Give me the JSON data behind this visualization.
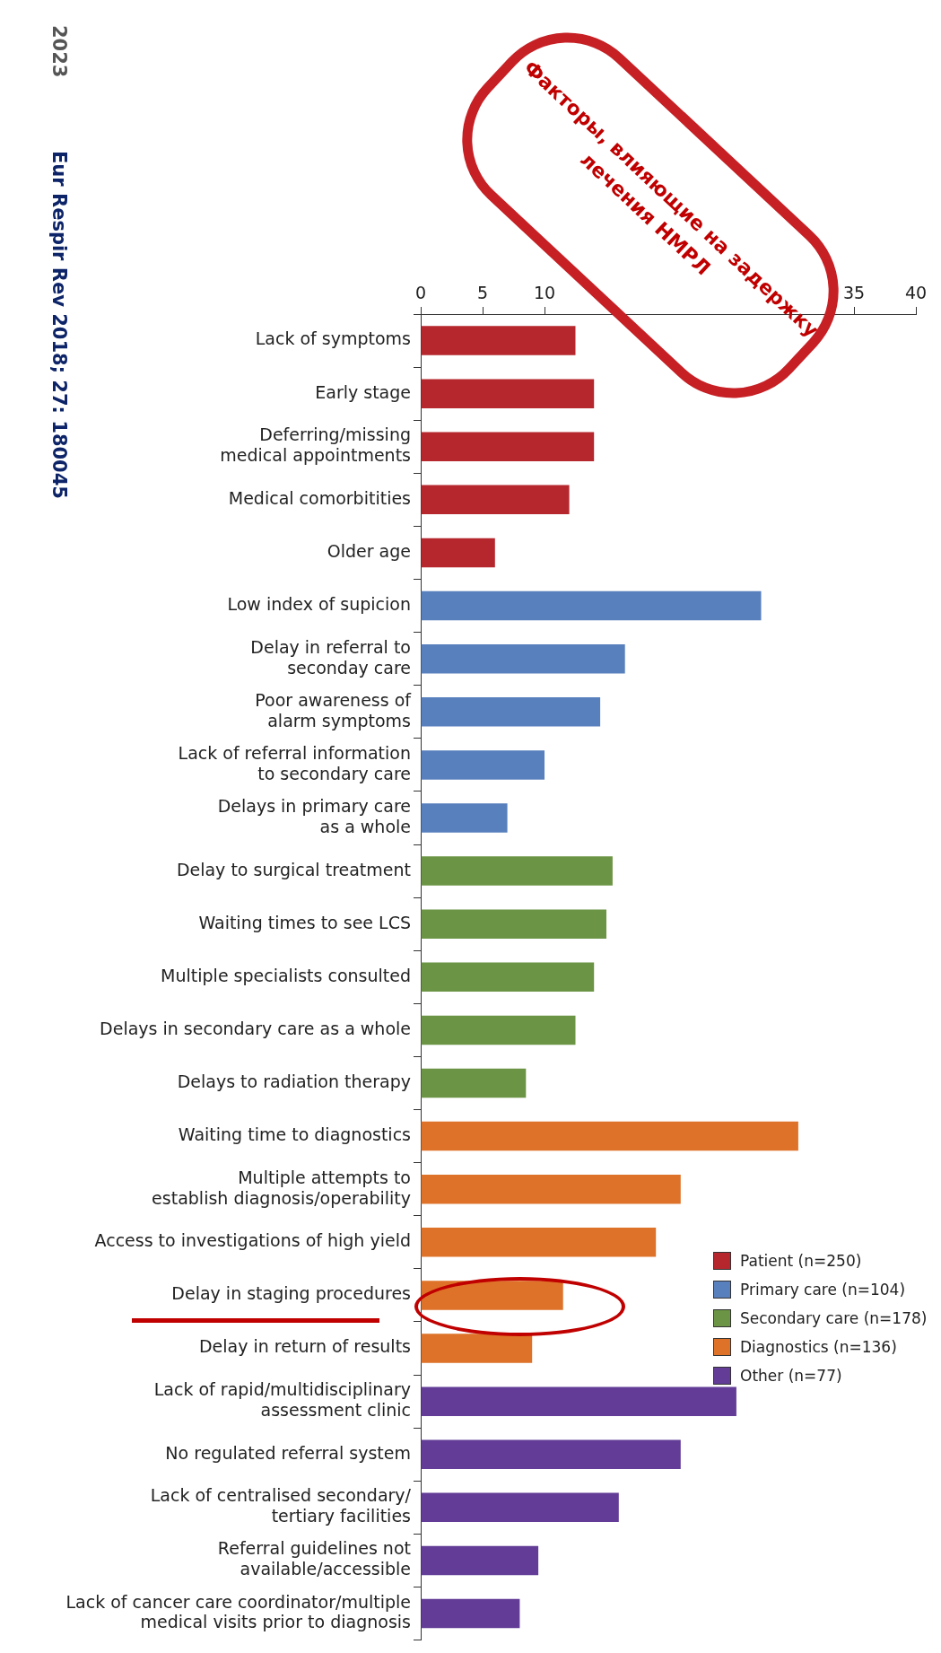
{
  "chart_data": {
    "type": "bar",
    "orientation": "horizontal",
    "categories": [
      "Lack of symptoms",
      "Early stage",
      "Deferring/missing\nmedical appointments",
      "Medical comorbitities",
      "Older age",
      "Low index of supicion",
      "Delay in referral to\nseconday care",
      "Poor awareness of\nalarm symptoms",
      "Lack of referral information\nto secondary care",
      "Delays in primary care\nas a whole",
      "Delay to surgical treatment",
      "Waiting times to see LCS",
      "Multiple specialists consulted",
      "Delays in secondary care as a whole",
      "Delays to radiation therapy",
      "Waiting time to diagnostics",
      "Multiple attempts to\nestablish diagnosis/operability",
      "Access to investigations of high yield",
      "Delay in staging procedures",
      "Delay in return of results",
      "Lack of rapid/multidisciplinary\nassessment clinic",
      "No regulated referral system",
      "Lack of centralised secondary/\ntertiary facilities",
      "Referral guidelines not\navailable/accessible",
      "Lack of cancer care coordinator/multiple\nmedical visits prior to diagnosis"
    ],
    "series": [
      {
        "name": "Patient (n=250)",
        "color": "#b5272d",
        "values": [
          12.5,
          14,
          14,
          12,
          6,
          null,
          null,
          null,
          null,
          null,
          null,
          null,
          null,
          null,
          null,
          null,
          null,
          null,
          null,
          null,
          null,
          null,
          null,
          null,
          null
        ]
      },
      {
        "name": "Primary care (n=104)",
        "color": "#5880bd",
        "values": [
          null,
          null,
          null,
          null,
          null,
          27.5,
          16.5,
          14.5,
          10,
          7,
          null,
          null,
          null,
          null,
          null,
          null,
          null,
          null,
          null,
          null,
          null,
          null,
          null,
          null,
          null
        ]
      },
      {
        "name": "Secondary care (n=178)",
        "color": "#6b9444",
        "values": [
          null,
          null,
          null,
          null,
          null,
          null,
          null,
          null,
          null,
          null,
          15.5,
          15,
          14,
          12.5,
          8.5,
          null,
          null,
          null,
          null,
          null,
          null,
          null,
          null,
          null,
          null
        ]
      },
      {
        "name": "Diagnostics (n=136)",
        "color": "#de7228",
        "values": [
          null,
          null,
          null,
          null,
          null,
          null,
          null,
          null,
          null,
          null,
          null,
          null,
          null,
          null,
          null,
          30.5,
          21,
          19,
          11.5,
          9,
          null,
          null,
          null,
          null,
          null
        ]
      },
      {
        "name": "Other (n=77)",
        "color": "#623c96",
        "values": [
          null,
          null,
          null,
          null,
          null,
          null,
          null,
          null,
          null,
          null,
          null,
          null,
          null,
          null,
          null,
          null,
          null,
          null,
          null,
          null,
          25.5,
          21,
          16,
          9.5,
          8
        ]
      }
    ],
    "xlim": [
      0,
      40
    ],
    "xticks": [
      0,
      5,
      10,
      35,
      40
    ],
    "grid": false,
    "legend": "bottom right",
    "annotations": [
      "2023",
      "Eur Respir Rev 2018; 27: 180045",
      "Факторы, влияющие на задержку\nлечения НМРЛ"
    ]
  }
}
